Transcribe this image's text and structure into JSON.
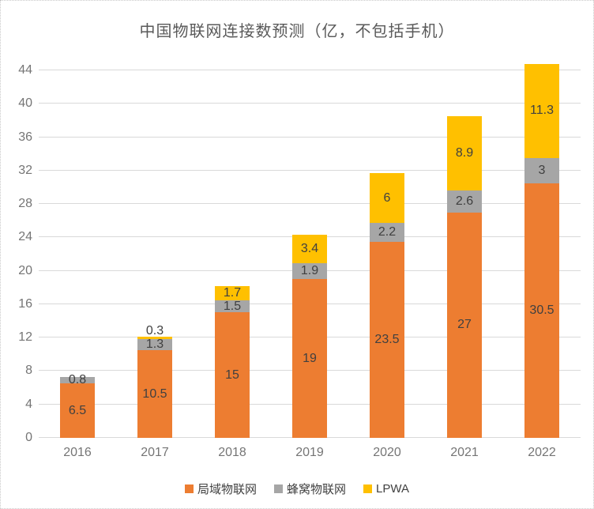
{
  "title": "中国物联网连接数预测（亿，不包括手机）",
  "chart_data": {
    "type": "bar",
    "stacked": true,
    "title": "中国物联网连接数预测（亿，不包括手机）",
    "categories": [
      "2016",
      "2017",
      "2018",
      "2019",
      "2020",
      "2021",
      "2022"
    ],
    "series": [
      {
        "name": "局域物联网",
        "color": "#ED7D31",
        "values": [
          6.5,
          10.5,
          15,
          19,
          23.5,
          27,
          30.5
        ]
      },
      {
        "name": "蜂窝物联网",
        "color": "#A6A6A6",
        "values": [
          0.8,
          1.3,
          1.5,
          1.9,
          2.2,
          2.6,
          3
        ]
      },
      {
        "name": "LPWA",
        "color": "#FFC000",
        "values": [
          null,
          0.3,
          1.7,
          3.4,
          6,
          8.9,
          11.3
        ]
      }
    ],
    "y_axis": {
      "min": 0,
      "max": 44,
      "step": 4,
      "tick_labels": [
        "0",
        "4",
        "8",
        "12",
        "16",
        "20",
        "24",
        "28",
        "32",
        "36",
        "40",
        "44"
      ]
    },
    "grid": true,
    "data_labels": true,
    "legend_position": "bottom"
  },
  "colors": {
    "grid": "#D9D9D9",
    "axis_text": "#757575",
    "value_label_text": "#404040",
    "title_text": "#595959",
    "frame_border": "#C9C9C9",
    "background": "#FFFFFF"
  }
}
